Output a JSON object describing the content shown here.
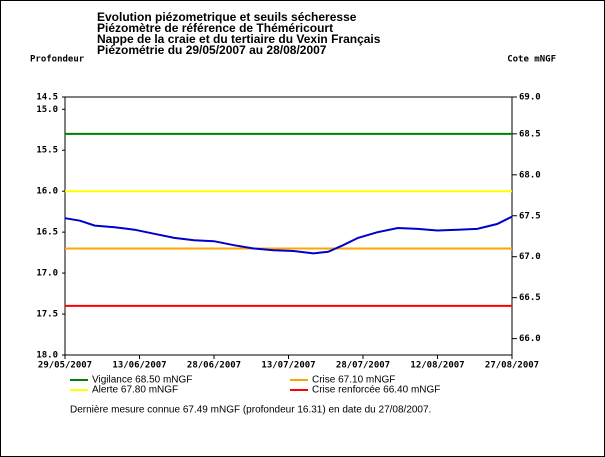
{
  "chart_data": {
    "type": "line",
    "title_lines": [
      "Evolution piézometrique et seuils sécheresse",
      "Piézomètre de référence de Théméricourt",
      "Nappe de la craie et du tertiaire du Vexin Français",
      "Piézométrie du 29/05/2007 au 28/08/2007"
    ],
    "ylabel": "Profondeur",
    "y2label": "Cote mNGF",
    "x": [
      "2007-05-29",
      "2007-06-01",
      "2007-06-04",
      "2007-06-08",
      "2007-06-12",
      "2007-06-16",
      "2007-06-20",
      "2007-06-24",
      "2007-06-28",
      "2007-07-02",
      "2007-07-06",
      "2007-07-10",
      "2007-07-14",
      "2007-07-18",
      "2007-07-21",
      "2007-07-24",
      "2007-07-27",
      "2007-07-31",
      "2007-08-04",
      "2007-08-08",
      "2007-08-12",
      "2007-08-16",
      "2007-08-20",
      "2007-08-24",
      "2007-08-27"
    ],
    "series": [
      {
        "color": "#0000cc",
        "values": [
          16.33,
          16.36,
          16.42,
          16.44,
          16.47,
          16.52,
          16.57,
          16.6,
          16.61,
          16.66,
          16.7,
          16.72,
          16.73,
          16.76,
          16.74,
          16.66,
          16.57,
          16.5,
          16.45,
          16.46,
          16.48,
          16.47,
          16.46,
          16.4,
          16.31
        ]
      }
    ],
    "thresholds": [
      {
        "name": "Vigilance 68.50 mNGF",
        "value": 68.5,
        "color": "#008000"
      },
      {
        "name": "Crise 67.10 mNGF",
        "value": 67.1,
        "color": "#ffa500"
      },
      {
        "name": "Alerte 67.80 mNGF",
        "value": 67.8,
        "color": "#ffff00"
      },
      {
        "name": "Crise renforcée 66.40 mNGF",
        "value": 66.4,
        "color": "#ff0000"
      }
    ],
    "xlim": [
      "2007-05-29",
      "2007-08-27"
    ],
    "xticks": [
      {
        "value": "2007-05-29",
        "label": "29/05/2007"
      },
      {
        "value": "2007-06-13",
        "label": "13/06/2007"
      },
      {
        "value": "2007-06-28",
        "label": "28/06/2007"
      },
      {
        "value": "2007-07-13",
        "label": "13/07/2007"
      },
      {
        "value": "2007-07-28",
        "label": "28/07/2007"
      },
      {
        "value": "2007-08-12",
        "label": "12/08/2007"
      },
      {
        "value": "2007-08-27",
        "label": "27/08/2007"
      }
    ],
    "ylim": [
      18.0,
      14.85
    ],
    "yticks": [
      14.5,
      {
        "value": 15.0,
        "label": "15.0"
      },
      15.5,
      {
        "value": 16.0,
        "label": "16.0"
      },
      16.5,
      {
        "value": 17.0,
        "label": "17.0"
      },
      17.5,
      {
        "value": 18.0,
        "label": "18.0"
      }
    ],
    "y2lim": [
      65.8,
      68.95
    ],
    "y2ticks": [
      {
        "value": 69.0,
        "label": "69.0"
      },
      68.5,
      {
        "value": 68.0,
        "label": "68.0"
      },
      67.5,
      {
        "value": 67.0,
        "label": "67.0"
      },
      66.5,
      {
        "value": 66.0,
        "label": "66.0"
      }
    ],
    "footer": "Dernière mesure connue 67.49 mNGF (profondeur  16.31) en date du 27/08/2007."
  }
}
